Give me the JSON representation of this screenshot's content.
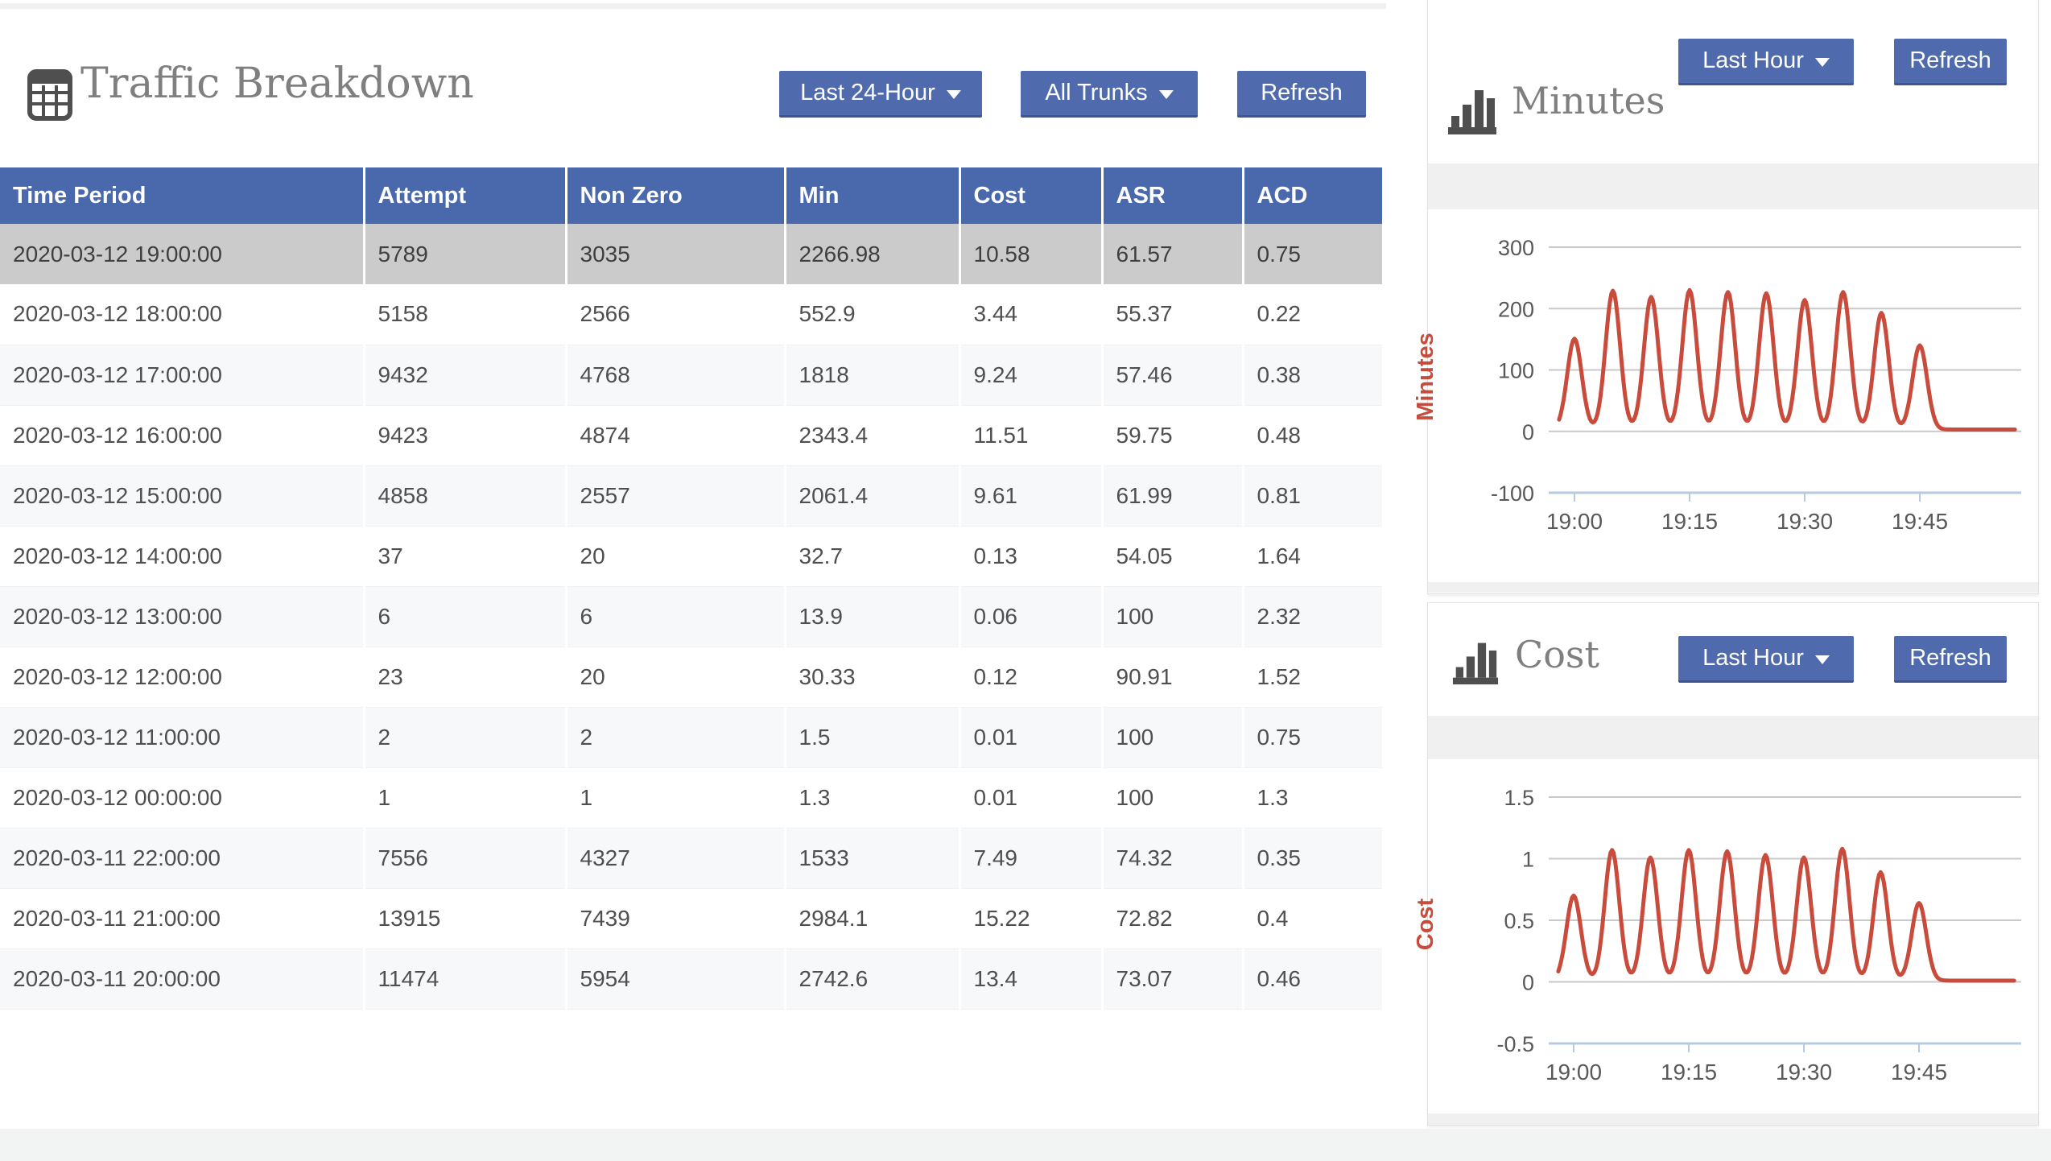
{
  "left_panel": {
    "title": "Traffic Breakdown",
    "controls": {
      "period": "Last 24-Hour",
      "trunks": "All Trunks",
      "refresh": "Refresh"
    },
    "table": {
      "columns": [
        "Time Period",
        "Attempt",
        "Non Zero",
        "Min",
        "Cost",
        "ASR",
        "ACD"
      ],
      "selected_row_index": 0,
      "rows": [
        [
          "2020-03-12 19:00:00",
          "5789",
          "3035",
          "2266.98",
          "10.58",
          "61.57",
          "0.75"
        ],
        [
          "2020-03-12 18:00:00",
          "5158",
          "2566",
          "552.9",
          "3.44",
          "55.37",
          "0.22"
        ],
        [
          "2020-03-12 17:00:00",
          "9432",
          "4768",
          "1818",
          "9.24",
          "57.46",
          "0.38"
        ],
        [
          "2020-03-12 16:00:00",
          "9423",
          "4874",
          "2343.4",
          "11.51",
          "59.75",
          "0.48"
        ],
        [
          "2020-03-12 15:00:00",
          "4858",
          "2557",
          "2061.4",
          "9.61",
          "61.99",
          "0.81"
        ],
        [
          "2020-03-12 14:00:00",
          "37",
          "20",
          "32.7",
          "0.13",
          "54.05",
          "1.64"
        ],
        [
          "2020-03-12 13:00:00",
          "6",
          "6",
          "13.9",
          "0.06",
          "100",
          "2.32"
        ],
        [
          "2020-03-12 12:00:00",
          "23",
          "20",
          "30.33",
          "0.12",
          "90.91",
          "1.52"
        ],
        [
          "2020-03-12 11:00:00",
          "2",
          "2",
          "1.5",
          "0.01",
          "100",
          "0.75"
        ],
        [
          "2020-03-12 00:00:00",
          "1",
          "1",
          "1.3",
          "0.01",
          "100",
          "1.3"
        ],
        [
          "2020-03-11 22:00:00",
          "7556",
          "4327",
          "1533",
          "7.49",
          "74.32",
          "0.35"
        ],
        [
          "2020-03-11 21:00:00",
          "13915",
          "7439",
          "2984.1",
          "15.22",
          "72.82",
          "0.4"
        ],
        [
          "2020-03-11 20:00:00",
          "11474",
          "5954",
          "2742.6",
          "13.4",
          "73.07",
          "0.46"
        ]
      ]
    }
  },
  "minutes_panel": {
    "title": "Minutes",
    "period": "Last Hour",
    "refresh": "Refresh"
  },
  "cost_panel": {
    "title": "Cost",
    "period": "Last Hour",
    "refresh": "Refresh"
  },
  "colors": {
    "header_blue": "#4a69ac",
    "button_blue": "#4f6bad",
    "line_red": "#c84b3c",
    "selected_row_gray": "#cbcbcb",
    "stripe_gray": "#f7f8fa",
    "gridline_gray": "#c9c9c9",
    "axis_blue": "#b8cadf",
    "title_gray": "#7f7f7f"
  },
  "chart_data": [
    {
      "type": "line",
      "title": "Minutes",
      "ylabel": "Minutes",
      "line_color": "#c84b3c",
      "x_ticks": [
        {
          "t": 0,
          "label": "19:00"
        },
        {
          "t": 15,
          "label": "19:15"
        },
        {
          "t": 30,
          "label": "19:30"
        },
        {
          "t": 45,
          "label": "19:45"
        }
      ],
      "y_ticks": [
        {
          "v": 300,
          "label": "300"
        },
        {
          "v": 200,
          "label": "200"
        },
        {
          "v": 100,
          "label": "100"
        },
        {
          "v": 0,
          "label": "0"
        }
      ],
      "y_axis_min": {
        "v": -100,
        "label": "-100"
      },
      "ylim": [
        -100,
        300
      ],
      "baseline": 3,
      "spike_times": [
        "19:00",
        "19:05",
        "19:10",
        "19:15",
        "19:20",
        "19:25",
        "19:30",
        "19:35",
        "19:40",
        "19:45"
      ],
      "spike_values": [
        148,
        226,
        216,
        227,
        224,
        222,
        211,
        224,
        190,
        137
      ],
      "grid": true,
      "legend": "none"
    },
    {
      "type": "line",
      "title": "Cost",
      "ylabel": "Cost",
      "line_color": "#c84b3c",
      "x_ticks": [
        {
          "t": 0,
          "label": "19:00"
        },
        {
          "t": 15,
          "label": "19:15"
        },
        {
          "t": 30,
          "label": "19:30"
        },
        {
          "t": 45,
          "label": "19:45"
        }
      ],
      "y_ticks": [
        {
          "v": 1.5,
          "label": "1.5"
        },
        {
          "v": 1,
          "label": "1"
        },
        {
          "v": 0.5,
          "label": "0.5"
        },
        {
          "v": 0,
          "label": "0"
        }
      ],
      "y_axis_min": {
        "v": -0.5,
        "label": "-0.5"
      },
      "ylim": [
        -0.5,
        1.5
      ],
      "baseline": 0.01,
      "spike_times": [
        "19:00",
        "19:05",
        "19:10",
        "19:15",
        "19:20",
        "19:25",
        "19:30",
        "19:35",
        "19:40",
        "19:45"
      ],
      "spike_values": [
        0.69,
        1.06,
        1.0,
        1.06,
        1.05,
        1.02,
        1.0,
        1.07,
        0.88,
        0.63
      ],
      "grid": true,
      "legend": "none"
    }
  ]
}
